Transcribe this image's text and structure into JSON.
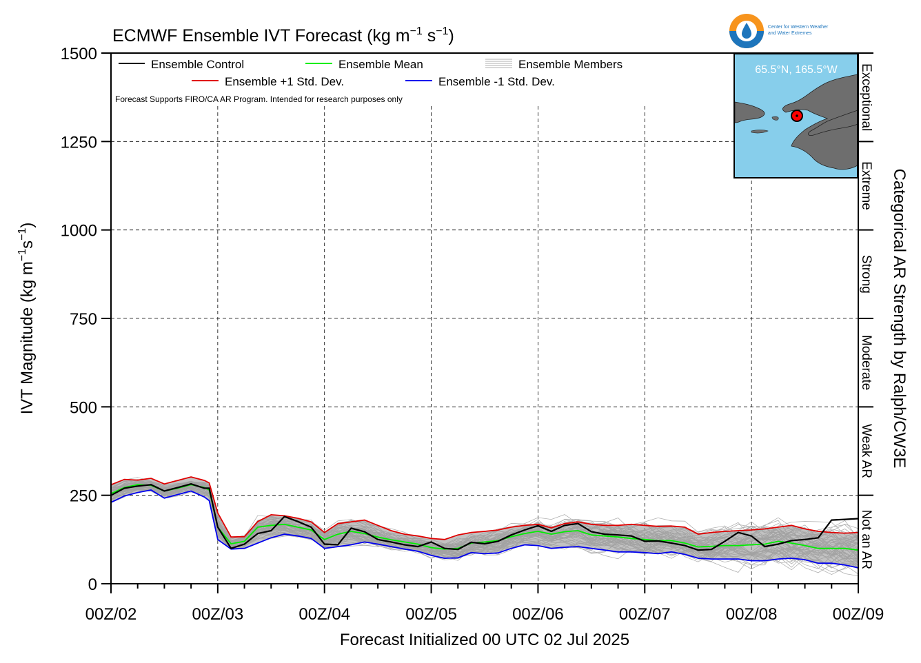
{
  "chart_data": {
    "type": "line",
    "title": "ECMWF Ensemble IVT Forecast",
    "title_units": {
      "base": "(kg m",
      "exp1": "−1",
      "mid": " s",
      "exp2": "−1",
      "end": ")"
    },
    "xlabel": "Forecast Initialized 00 UTC 02 Jul 2025",
    "ylabel": {
      "base": "IVT Magnitude (kg m",
      "exp1": "−1",
      "mid": "s",
      "exp2": "−1",
      "end": ")"
    },
    "right_label": "Categorical AR Strength by Ralph/CW3E",
    "note": "Forecast Supports FIRO/CA AR Program. Intended for research purposes only",
    "xlim": [
      0,
      7
    ],
    "ylim": [
      0,
      1500
    ],
    "grid": true,
    "x_ticks": [
      {
        "x": 0,
        "label": "00Z/02"
      },
      {
        "x": 1,
        "label": "00Z/03"
      },
      {
        "x": 2,
        "label": "00Z/04"
      },
      {
        "x": 3,
        "label": "00Z/05"
      },
      {
        "x": 4,
        "label": "00Z/06"
      },
      {
        "x": 5,
        "label": "00Z/07"
      },
      {
        "x": 6,
        "label": "00Z/08"
      },
      {
        "x": 7,
        "label": "00Z/09"
      }
    ],
    "y_ticks": [
      0,
      250,
      500,
      750,
      1000,
      1250,
      1500
    ],
    "categories": [
      {
        "label": "Not an AR",
        "from": 0,
        "to": 250
      },
      {
        "label": "Weak AR",
        "from": 250,
        "to": 500
      },
      {
        "label": "Moderate",
        "from": 500,
        "to": 750
      },
      {
        "label": "Strong",
        "from": 750,
        "to": 1000
      },
      {
        "label": "Extreme",
        "from": 1000,
        "to": 1250
      },
      {
        "label": "Exceptional",
        "from": 1250,
        "to": 1500
      }
    ],
    "legend": {
      "placement": "top-left",
      "entries": [
        {
          "key": "control",
          "label": "Ensemble Control"
        },
        {
          "key": "mean",
          "label": "Ensemble Mean"
        },
        {
          "key": "members",
          "label": "Ensemble Members"
        },
        {
          "key": "plus",
          "label": "Ensemble +1 Std. Dev."
        },
        {
          "key": "minus",
          "label": "Ensemble -1 Std. Dev."
        }
      ]
    },
    "colors": {
      "control": "#000000",
      "mean": "#00ee00",
      "plus": "#e00000",
      "minus": "#0000ee",
      "members": "#b0b0b0",
      "band": "#9a9a9a"
    },
    "series": [
      {
        "name": "Ensemble Control",
        "key": "control",
        "x": [
          0,
          0.125,
          0.25,
          0.375,
          0.5,
          0.625,
          0.75,
          0.875,
          0.92,
          1,
          1.125,
          1.25,
          1.375,
          1.5,
          1.625,
          1.75,
          1.875,
          2,
          2.125,
          2.25,
          2.375,
          2.5,
          2.625,
          2.75,
          2.875,
          3,
          3.125,
          3.25,
          3.375,
          3.5,
          3.625,
          3.75,
          3.875,
          4,
          4.125,
          4.25,
          4.375,
          4.5,
          4.625,
          4.75,
          4.875,
          5,
          5.125,
          5.25,
          5.375,
          5.5,
          5.625,
          5.75,
          5.875,
          6,
          6.125,
          6.25,
          6.375,
          6.5,
          6.625,
          6.75,
          6.875,
          7
        ],
        "values": [
          250,
          270,
          276,
          280,
          262,
          272,
          282,
          270,
          270,
          160,
          100,
          112,
          142,
          150,
          190,
          176,
          160,
          112,
          110,
          157,
          147,
          125,
          118,
          110,
          105,
          118,
          100,
          97,
          117,
          113,
          120,
          138,
          152,
          164,
          148,
          165,
          170,
          147,
          140,
          138,
          135,
          120,
          121,
          115,
          108,
          95,
          97,
          120,
          145,
          135,
          105,
          112,
          122,
          125,
          130,
          180,
          182,
          184
        ]
      },
      {
        "name": "Ensemble Mean",
        "key": "mean",
        "x": [
          0,
          0.125,
          0.25,
          0.375,
          0.5,
          0.625,
          0.75,
          0.875,
          0.92,
          1,
          1.125,
          1.25,
          1.375,
          1.5,
          1.625,
          1.75,
          1.875,
          2,
          2.125,
          2.25,
          2.375,
          2.5,
          2.625,
          2.75,
          2.875,
          3,
          3.125,
          3.25,
          3.375,
          3.5,
          3.625,
          3.75,
          3.875,
          4,
          4.125,
          4.25,
          4.375,
          4.5,
          4.625,
          4.75,
          4.875,
          5,
          5.125,
          5.25,
          5.375,
          5.5,
          5.625,
          5.75,
          5.875,
          6,
          6.125,
          6.25,
          6.375,
          6.5,
          6.625,
          6.75,
          6.875,
          7
        ],
        "values": [
          255,
          272,
          280,
          278,
          262,
          270,
          280,
          272,
          265,
          160,
          113,
          120,
          160,
          165,
          168,
          160,
          152,
          125,
          140,
          148,
          142,
          132,
          124,
          118,
          112,
          102,
          98,
          100,
          115,
          118,
          122,
          133,
          142,
          148,
          140,
          147,
          150,
          138,
          135,
          132,
          128,
          125,
          122,
          122,
          115,
          104,
          106,
          108,
          108,
          110,
          112,
          120,
          115,
          108,
          100,
          100,
          100,
          95
        ]
      },
      {
        "name": "Ensemble +1 Std. Dev.",
        "key": "plus",
        "x": [
          0,
          0.125,
          0.25,
          0.375,
          0.5,
          0.625,
          0.75,
          0.875,
          0.92,
          1,
          1.125,
          1.25,
          1.375,
          1.5,
          1.625,
          1.75,
          1.875,
          2,
          2.125,
          2.25,
          2.375,
          2.5,
          2.625,
          2.75,
          2.875,
          3,
          3.125,
          3.25,
          3.375,
          3.5,
          3.625,
          3.75,
          3.875,
          4,
          4.125,
          4.25,
          4.375,
          4.5,
          4.625,
          4.75,
          4.875,
          5,
          5.125,
          5.25,
          5.375,
          5.5,
          5.625,
          5.75,
          5.875,
          6,
          6.125,
          6.25,
          6.375,
          6.5,
          6.625,
          6.75,
          6.875,
          7
        ],
        "values": [
          280,
          295,
          293,
          298,
          282,
          292,
          302,
          292,
          285,
          200,
          132,
          133,
          176,
          195,
          192,
          185,
          175,
          145,
          170,
          175,
          180,
          165,
          150,
          140,
          135,
          128,
          125,
          138,
          145,
          148,
          152,
          160,
          165,
          168,
          158,
          170,
          175,
          168,
          165,
          165,
          168,
          165,
          162,
          163,
          160,
          140,
          145,
          148,
          150,
          152,
          155,
          160,
          165,
          155,
          148,
          145,
          143,
          145
        ]
      },
      {
        "name": "Ensemble -1 Std. Dev.",
        "key": "minus",
        "x": [
          0,
          0.125,
          0.25,
          0.375,
          0.5,
          0.625,
          0.75,
          0.875,
          0.92,
          1,
          1.125,
          1.25,
          1.375,
          1.5,
          1.625,
          1.75,
          1.875,
          2,
          2.125,
          2.25,
          2.375,
          2.5,
          2.625,
          2.75,
          2.875,
          3,
          3.125,
          3.25,
          3.375,
          3.5,
          3.625,
          3.75,
          3.875,
          4,
          4.125,
          4.25,
          4.375,
          4.5,
          4.625,
          4.75,
          4.875,
          5,
          5.125,
          5.25,
          5.375,
          5.5,
          5.625,
          5.75,
          5.875,
          6,
          6.125,
          6.25,
          6.375,
          6.5,
          6.625,
          6.75,
          6.875,
          7
        ],
        "values": [
          230,
          248,
          258,
          265,
          242,
          252,
          262,
          245,
          235,
          125,
          98,
          100,
          115,
          130,
          140,
          135,
          128,
          100,
          105,
          110,
          118,
          112,
          105,
          98,
          92,
          80,
          72,
          73,
          88,
          85,
          87,
          100,
          110,
          108,
          100,
          103,
          105,
          100,
          95,
          90,
          90,
          88,
          85,
          90,
          83,
          72,
          70,
          70,
          70,
          65,
          65,
          70,
          72,
          68,
          58,
          58,
          53,
          45
        ]
      }
    ],
    "map_inset": {
      "label": "65.5°N, 165.5°W",
      "colors": {
        "water": "#87ceeb",
        "land": "#6e6e6e",
        "marker": "#ff0000"
      }
    },
    "logo": {
      "text_line1": "Center for Western Weather",
      "text_line2": "and Water Extremes",
      "colors": {
        "orange": "#f7941d",
        "blue": "#1d75bc"
      }
    }
  }
}
